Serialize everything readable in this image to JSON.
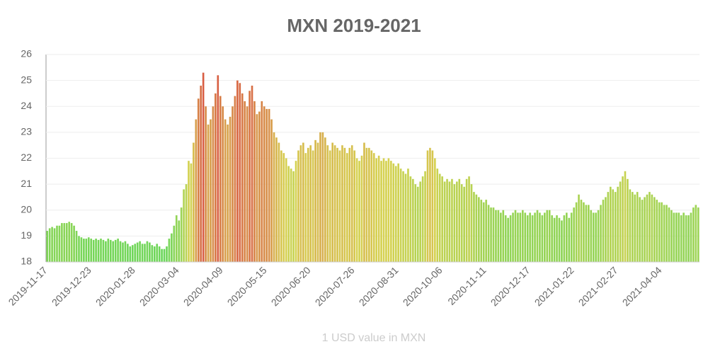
{
  "chart_data": {
    "type": "bar",
    "title": "MXN 2019-2021",
    "x_label": "1 USD value in MXN",
    "categories": [
      "2019-11-17",
      null,
      null,
      null,
      null,
      null,
      null,
      null,
      null,
      null,
      null,
      null,
      null,
      null,
      null,
      null,
      null,
      null,
      "2019-12-23",
      null,
      null,
      null,
      null,
      null,
      null,
      null,
      null,
      null,
      null,
      null,
      null,
      null,
      null,
      null,
      null,
      null,
      "2020-01-28",
      null,
      null,
      null,
      null,
      null,
      null,
      null,
      null,
      null,
      null,
      null,
      null,
      null,
      null,
      null,
      null,
      null,
      "2020-03-04",
      null,
      null,
      null,
      null,
      null,
      null,
      null,
      null,
      null,
      null,
      null,
      null,
      null,
      null,
      null,
      null,
      null,
      "2020-04-09",
      null,
      null,
      null,
      null,
      null,
      null,
      null,
      null,
      null,
      null,
      null,
      null,
      null,
      null,
      null,
      null,
      null,
      "2020-05-15",
      null,
      null,
      null,
      null,
      null,
      null,
      null,
      null,
      null,
      null,
      null,
      null,
      null,
      null,
      null,
      null,
      null,
      "2020-06-20",
      null,
      null,
      null,
      null,
      null,
      null,
      null,
      null,
      null,
      null,
      null,
      null,
      null,
      null,
      null,
      null,
      null,
      "2020-07-26",
      null,
      null,
      null,
      null,
      null,
      null,
      null,
      null,
      null,
      null,
      null,
      null,
      null,
      null,
      null,
      null,
      null,
      "2020-08-31",
      null,
      null,
      null,
      null,
      null,
      null,
      null,
      null,
      null,
      null,
      null,
      null,
      null,
      null,
      null,
      null,
      null,
      "2020-10-06",
      null,
      null,
      null,
      null,
      null,
      null,
      null,
      null,
      null,
      null,
      null,
      null,
      null,
      null,
      null,
      null,
      null,
      "2020-11-11",
      null,
      null,
      null,
      null,
      null,
      null,
      null,
      null,
      null,
      null,
      null,
      null,
      null,
      null,
      null,
      null,
      null,
      "2020-12-17",
      null,
      null,
      null,
      null,
      null,
      null,
      null,
      null,
      null,
      null,
      null,
      null,
      null,
      null,
      null,
      null,
      null,
      "2021-01-22",
      null,
      null,
      null,
      null,
      null,
      null,
      null,
      null,
      null,
      null,
      null,
      null,
      null,
      null,
      null,
      null,
      null,
      "2021-02-27",
      null,
      null,
      null,
      null,
      null,
      null,
      null,
      null,
      null,
      null,
      null,
      null,
      null,
      null,
      null,
      null,
      null,
      "2021-04-04",
      null,
      null,
      null,
      null,
      null,
      null,
      null,
      null,
      null,
      null,
      null,
      null,
      null,
      null,
      null
    ],
    "values": [
      19.2,
      19.3,
      19.35,
      19.3,
      19.4,
      19.4,
      19.5,
      19.5,
      19.5,
      19.55,
      19.5,
      19.4,
      19.2,
      19.0,
      18.95,
      18.9,
      18.9,
      18.95,
      18.9,
      18.85,
      18.9,
      18.85,
      18.9,
      18.85,
      18.8,
      18.9,
      18.85,
      18.8,
      18.85,
      18.9,
      18.8,
      18.75,
      18.8,
      18.7,
      18.6,
      18.65,
      18.7,
      18.75,
      18.8,
      18.7,
      18.7,
      18.8,
      18.75,
      18.65,
      18.6,
      18.7,
      18.6,
      18.5,
      18.5,
      18.6,
      18.9,
      19.1,
      19.4,
      19.8,
      19.6,
      20.1,
      20.8,
      21.0,
      21.9,
      21.8,
      22.6,
      23.5,
      24.3,
      24.8,
      25.3,
      24.0,
      23.3,
      23.5,
      24.0,
      24.5,
      25.2,
      24.4,
      24.0,
      23.5,
      23.3,
      23.6,
      24.0,
      24.4,
      25.0,
      24.9,
      24.5,
      24.2,
      24.0,
      24.6,
      24.8,
      24.2,
      23.7,
      23.8,
      24.2,
      24.0,
      23.9,
      23.9,
      23.5,
      23.0,
      22.8,
      22.6,
      22.3,
      22.2,
      22.0,
      21.7,
      21.6,
      21.5,
      21.9,
      22.3,
      22.5,
      22.6,
      22.2,
      22.4,
      22.5,
      22.3,
      22.7,
      22.6,
      23.0,
      23.0,
      22.8,
      22.5,
      22.3,
      22.6,
      22.5,
      22.4,
      22.3,
      22.5,
      22.4,
      22.2,
      22.4,
      22.5,
      22.3,
      22.0,
      21.9,
      22.1,
      22.6,
      22.4,
      22.4,
      22.3,
      22.2,
      22.0,
      22.1,
      21.9,
      22.0,
      21.9,
      22.0,
      21.9,
      21.8,
      21.7,
      21.8,
      21.6,
      21.5,
      21.4,
      21.6,
      21.3,
      21.2,
      21.0,
      20.9,
      21.1,
      21.3,
      21.5,
      22.3,
      22.4,
      22.3,
      22.0,
      21.6,
      21.4,
      21.3,
      21.1,
      21.2,
      21.1,
      21.2,
      21.0,
      21.1,
      21.2,
      21.0,
      20.9,
      21.2,
      21.3,
      21.0,
      20.7,
      20.6,
      20.5,
      20.4,
      20.3,
      20.4,
      20.2,
      20.1,
      20.1,
      20.0,
      20.0,
      19.9,
      20.0,
      19.8,
      19.7,
      19.8,
      19.9,
      20.0,
      19.9,
      19.9,
      20.0,
      19.9,
      19.8,
      19.9,
      19.8,
      19.9,
      20.0,
      19.9,
      19.8,
      19.9,
      20.0,
      20.0,
      19.8,
      19.7,
      19.8,
      19.7,
      19.6,
      19.8,
      19.9,
      19.7,
      19.9,
      20.1,
      20.3,
      20.6,
      20.4,
      20.3,
      20.2,
      20.2,
      20.0,
      19.9,
      19.9,
      20.0,
      20.2,
      20.4,
      20.5,
      20.7,
      20.9,
      20.8,
      20.7,
      20.9,
      21.1,
      21.3,
      21.5,
      21.2,
      20.8,
      20.7,
      20.6,
      20.7,
      20.5,
      20.4,
      20.5,
      20.6,
      20.7,
      20.6,
      20.5,
      20.4,
      20.3,
      20.3,
      20.2,
      20.2,
      20.1,
      20.0,
      19.9,
      19.9,
      19.9,
      19.8,
      19.9,
      19.8,
      19.8,
      19.9,
      20.1,
      20.2,
      20.1
    ],
    "color_scale": [
      "#5bd75b",
      "#d6d14f",
      "#d8433f"
    ],
    "ylim": [
      18,
      26
    ],
    "yticks": [
      18,
      19,
      20,
      21,
      22,
      23,
      24,
      25,
      26
    ],
    "grid": true
  }
}
